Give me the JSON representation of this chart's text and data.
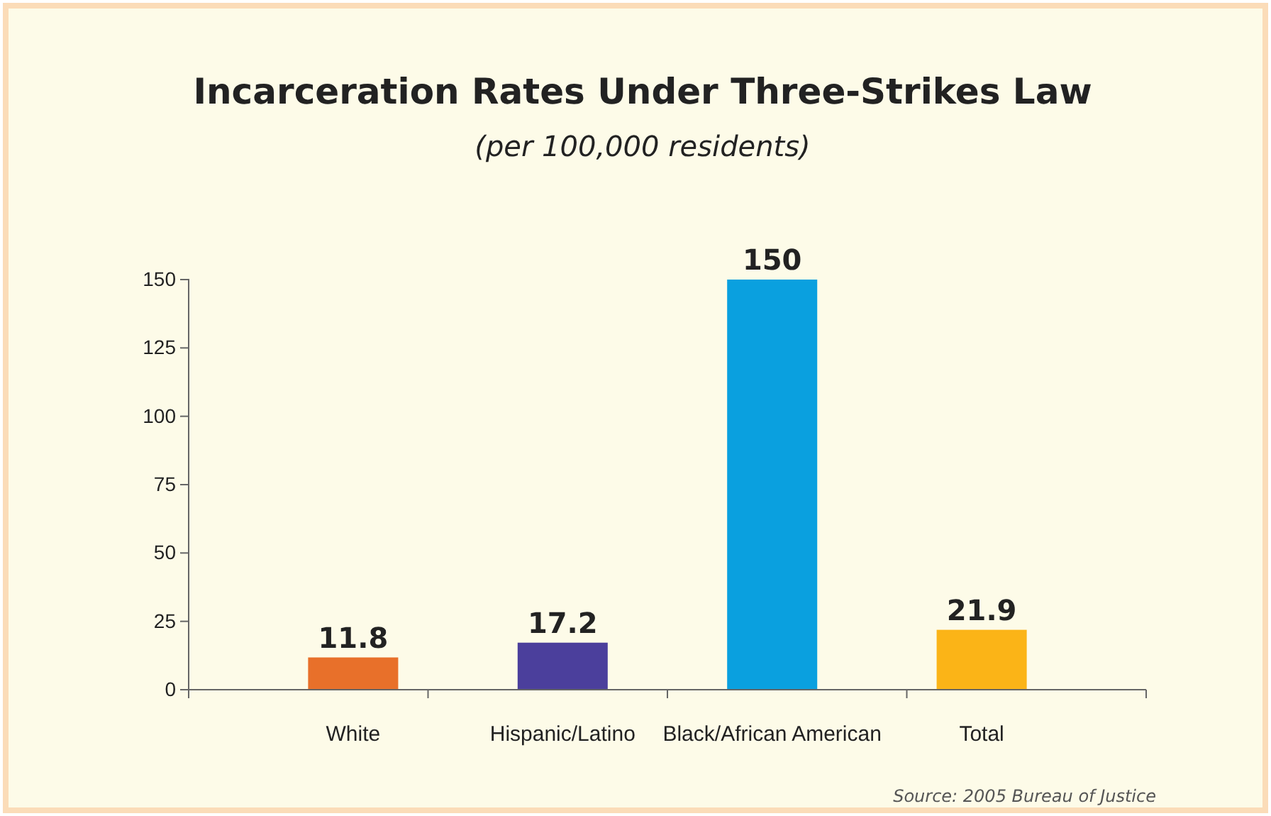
{
  "chart_data": {
    "type": "bar",
    "title": "Incarceration Rates Under Three-Strikes Law",
    "subtitle": "(per 100,000 residents)",
    "categories": [
      "White",
      "Hispanic/Latino",
      "Black/African American",
      "Total"
    ],
    "values": [
      11.8,
      17.2,
      150,
      21.9
    ],
    "colors": [
      "#e8702a",
      "#4b3f9c",
      "#0aa0df",
      "#fbb417"
    ],
    "ylim": [
      0,
      150
    ],
    "yticks": [
      0,
      25,
      50,
      75,
      100,
      125,
      150
    ],
    "grid": false,
    "data_labels": true,
    "annotations": [
      "Source: 2005 Bureau of Justice"
    ]
  }
}
